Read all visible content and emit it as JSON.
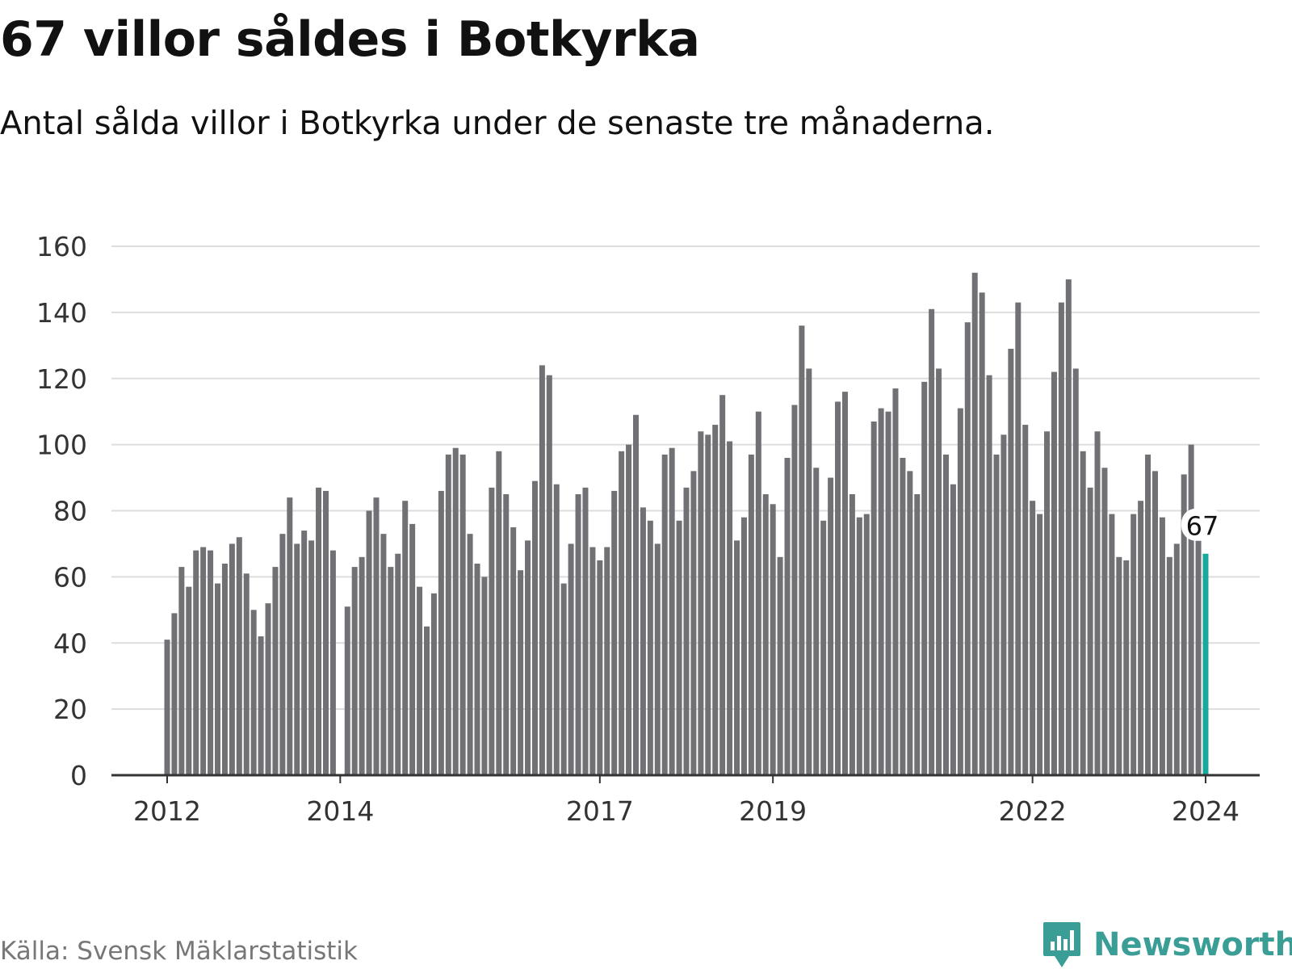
{
  "header": {
    "title": "67 villor såldes i Botkyrka",
    "subtitle": "Antal sålda villor i Botkyrka under de senaste tre månaderna."
  },
  "footer": {
    "source": "Källa: Svensk Mäklarstatistik",
    "brand": "Newsworthy",
    "brand_icon": "bar-chart-logo-icon"
  },
  "colors": {
    "bar": "#707075",
    "highlight": "#1ba89c",
    "grid": "#dddddd",
    "axis": "#333333",
    "brand": "#3a9e96"
  },
  "chart_data": {
    "type": "bar",
    "title": "67 villor såldes i Botkyrka",
    "subtitle": "Antal sålda villor i Botkyrka under de senaste tre månaderna.",
    "ylim": [
      0,
      160
    ],
    "yticks": [
      0,
      20,
      40,
      60,
      80,
      100,
      120,
      140,
      160
    ],
    "grid": true,
    "x_start": "2012-01",
    "x_end": "2024-01",
    "xticks": [
      {
        "label": "2012",
        "date": "2012-01"
      },
      {
        "label": "2014",
        "date": "2014-01"
      },
      {
        "label": "2017",
        "date": "2017-01"
      },
      {
        "label": "2019",
        "date": "2019-01"
      },
      {
        "label": "2022",
        "date": "2022-01"
      },
      {
        "label": "2024",
        "date": "2024-01"
      }
    ],
    "values": [
      41,
      49,
      63,
      57,
      68,
      69,
      68,
      58,
      64,
      70,
      72,
      61,
      50,
      42,
      52,
      63,
      73,
      84,
      70,
      74,
      71,
      87,
      86,
      68,
      0,
      51,
      63,
      66,
      80,
      84,
      73,
      63,
      67,
      83,
      76,
      57,
      45,
      55,
      86,
      97,
      99,
      97,
      73,
      64,
      60,
      87,
      98,
      85,
      75,
      62,
      71,
      89,
      124,
      121,
      88,
      58,
      70,
      85,
      87,
      69,
      65,
      69,
      86,
      98,
      100,
      109,
      81,
      77,
      70,
      97,
      99,
      77,
      87,
      92,
      104,
      103,
      106,
      115,
      101,
      71,
      78,
      97,
      110,
      85,
      82,
      66,
      96,
      112,
      136,
      123,
      93,
      77,
      90,
      113,
      116,
      85,
      78,
      79,
      107,
      111,
      110,
      117,
      96,
      92,
      85,
      119,
      141,
      123,
      97,
      88,
      111,
      137,
      152,
      146,
      121,
      97,
      103,
      129,
      143,
      106,
      83,
      79,
      104,
      122,
      143,
      150,
      123,
      98,
      87,
      104,
      93,
      79,
      66,
      65,
      79,
      83,
      97,
      92,
      78,
      66,
      70,
      91,
      100,
      71,
      67
    ],
    "highlight": {
      "index": 144,
      "value": 67,
      "label": "67"
    }
  }
}
